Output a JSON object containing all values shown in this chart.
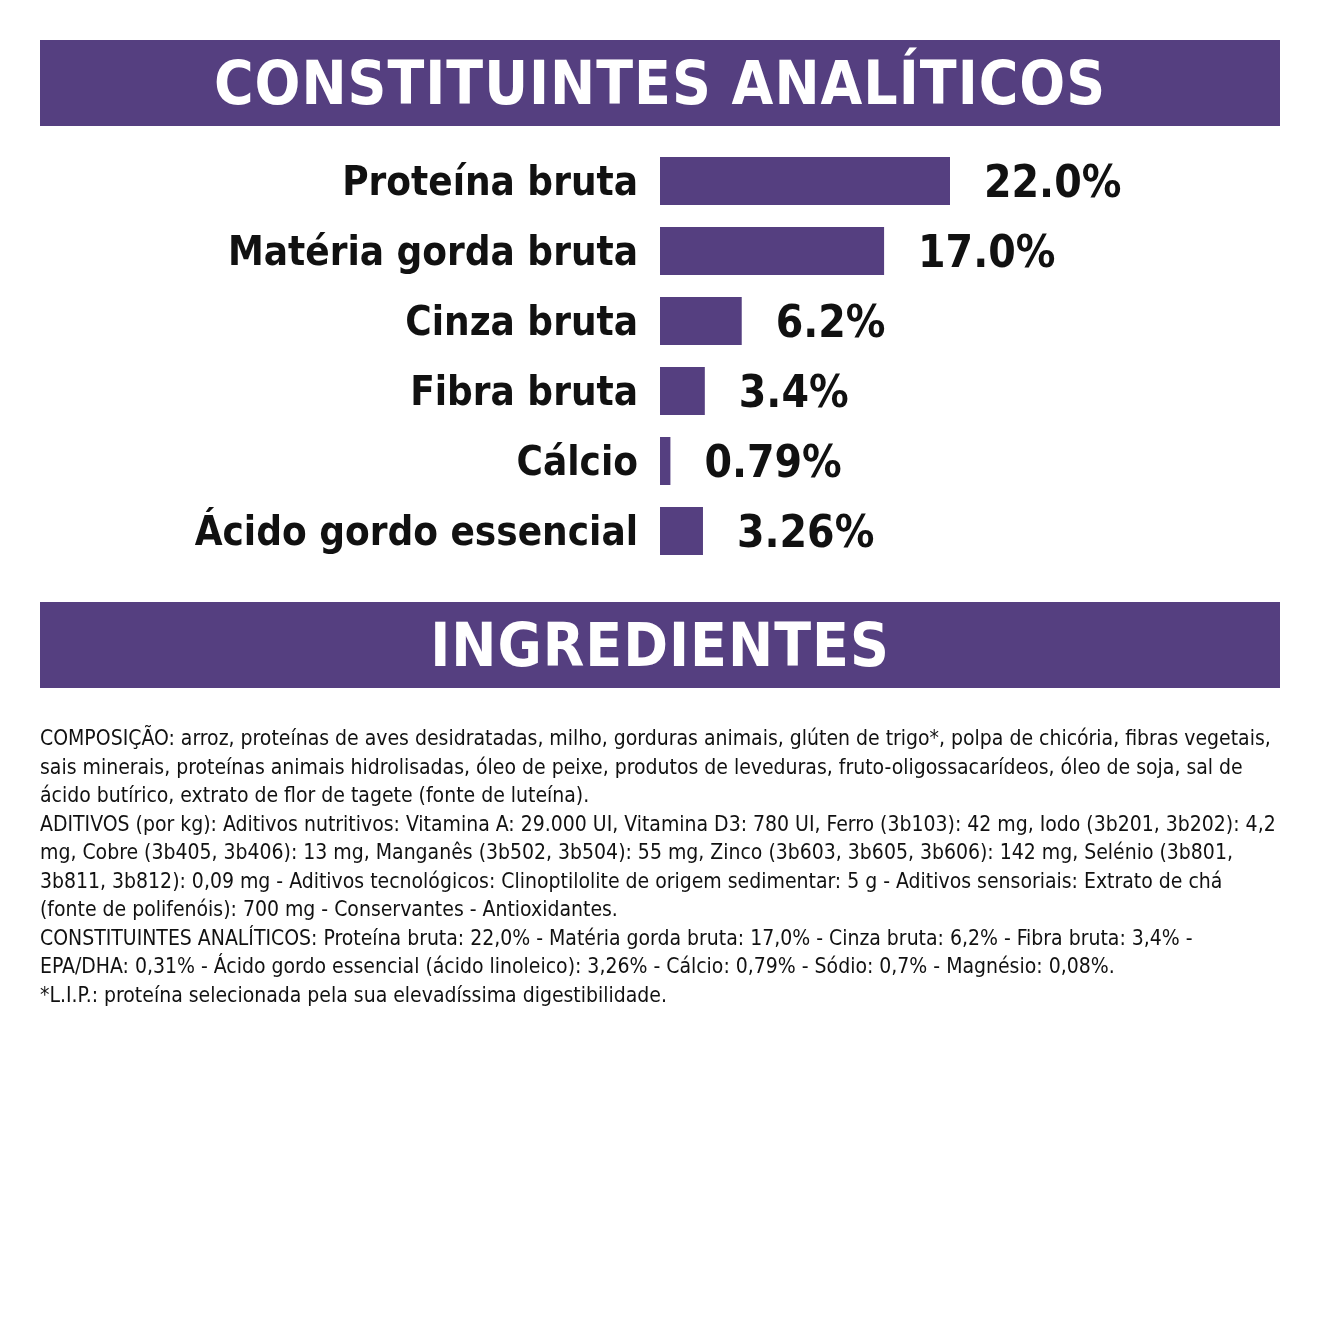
{
  "chart_data": {
    "type": "bar",
    "orientation": "horizontal",
    "title": "CONSTITUINTES ANALÍTICOS",
    "categories": [
      "Proteína bruta",
      "Matéria gorda bruta",
      "Cinza bruta",
      "Fibra bruta",
      "Cálcio",
      "Ácido gordo essencial"
    ],
    "values": [
      22.0,
      17.0,
      6.2,
      3.4,
      0.79,
      3.26
    ],
    "value_labels": [
      "22.0%",
      "17.0%",
      "6.2%",
      "3.4%",
      "0.79%",
      "3.26%"
    ],
    "color": "#553f80",
    "annotations": [
      "INGREDIENTES",
      "COMPOSIÇÃO: arroz, proteínas de aves desidratadas, milho, gorduras animais, glúten de trigo*, polpa de chicória, fibras vegetais, sais minerais, proteínas animais hidrolisadas, óleo de peixe, produtos de leveduras, fruto-oligossacarídeos, óleo de soja, sal de ácido butírico, extrato de flor de tagete (fonte de luteína).",
      "ADITIVOS (por kg): Aditivos nutritivos: Vitamina A: 29.000 UI, Vitamina D3: 780 UI, Ferro (3b103): 42 mg, Iodo (3b201, 3b202): 4,2 mg, Cobre (3b405, 3b406): 13 mg, Manganês (3b502, 3b504): 55 mg, Zinco (3b603, 3b605, 3b606): 142 mg, Selénio (3b801, 3b811, 3b812): 0,09 mg - Aditivos tecnológicos: Clinoptilolite de origem sedimentar: 5 g - Aditivos sensoriais: Extrato de chá (fonte de polifenóis): 700 mg - Conservantes - Antioxidantes.",
      "CONSTITUINTES ANALÍTICOS: Proteína bruta: 22,0% - Matéria gorda bruta: 17,0% - Cinza bruta: 6,2% - Fibra bruta: 3,4% - EPA/DHA: 0,31% - Ácido gordo essencial (ácido linoleico): 3,26% - Cálcio: 0,79% - Sódio: 0,7% - Magnésio: 0,08%.",
      "*L.I.P.: proteína selecionada pela sua elevadíssima digestibilidade."
    ]
  }
}
